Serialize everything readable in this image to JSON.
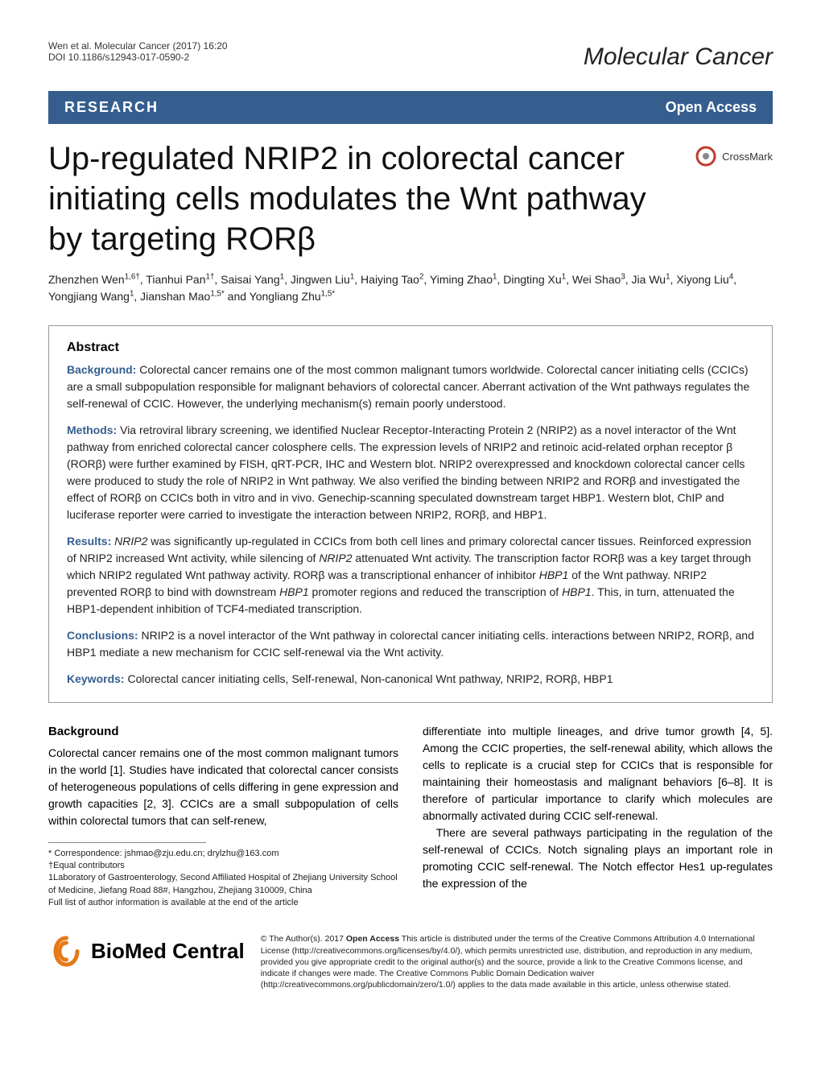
{
  "meta": {
    "running_head": "Wen et al. Molecular Cancer (2017) 16:20",
    "doi": "DOI 10.1186/s12943-017-0590-2",
    "journal": "Molecular Cancer"
  },
  "banner": {
    "category": "RESEARCH",
    "access": "Open Access"
  },
  "crossmark": {
    "label": "CrossMark",
    "ring_color": "#c23a2e",
    "dot_color": "#888"
  },
  "title": "Up-regulated NRIP2 in colorectal cancer initiating cells modulates the Wnt pathway by targeting RORβ",
  "authors_html": "Zhenzhen Wen<sup>1,6†</sup>, Tianhui Pan<sup>1†</sup>, Saisai Yang<sup>1</sup>, Jingwen Liu<sup>1</sup>, Haiying Tao<sup>2</sup>, Yiming Zhao<sup>1</sup>, Dingting Xu<sup>1</sup>, Wei Shao<sup>3</sup>, Jia Wu<sup>1</sup>, Xiyong Liu<sup>4</sup>, Yongjiang Wang<sup>1</sup>, Jianshan Mao<sup>1,5*</sup> and Yongliang Zhu<sup>1,5*</sup>",
  "abstract": {
    "heading": "Abstract",
    "background": {
      "label": "Background:",
      "text": " Colorectal cancer remains one of the most common malignant tumors worldwide. Colorectal cancer initiating cells (CCICs) are a small subpopulation responsible for malignant behaviors of colorectal cancer. Aberrant activation of the Wnt pathways regulates the self-renewal of CCIC. However, the underlying mechanism(s) remain poorly understood."
    },
    "methods": {
      "label": "Methods:",
      "text": " Via retroviral library screening, we identified Nuclear Receptor-Interacting Protein 2 (NRIP2) as a novel interactor of the Wnt pathway from enriched colorectal cancer colosphere cells. The expression levels of NRIP2 and retinoic acid-related orphan receptor β (RORβ) were further examined by FISH, qRT-PCR, IHC and Western blot. NRIP2 overexpressed and knockdown colorectal cancer cells were produced to study the role of NRIP2 in Wnt pathway. We also verified the binding between NRIP2 and RORβ and investigated the effect of RORβ on CCICs both in vitro and in vivo. Genechip-scanning speculated downstream target HBP1. Western blot, ChIP and luciferase reporter were carried to investigate the interaction between NRIP2, RORβ, and HBP1."
    },
    "results": {
      "label": "Results:",
      "text_html": " <em>NRIP2</em> was significantly up-regulated in CCICs from both cell lines and primary colorectal cancer tissues. Reinforced expression of NRIP2 increased Wnt activity, while silencing of <em>NRIP2</em> attenuated Wnt activity. The transcription factor RORβ was a key target through which NRIP2 regulated Wnt pathway activity. RORβ was a transcriptional enhancer of inhibitor <em>HBP1</em> of the Wnt pathway. NRIP2 prevented RORβ to bind with downstream <em>HBP1</em> promoter regions and reduced the transcription of <em>HBP1</em>. This, in turn, attenuated the HBP1-dependent inhibition of TCF4-mediated transcription."
    },
    "conclusions": {
      "label": "Conclusions:",
      "text": " NRIP2 is a novel interactor of the Wnt pathway in colorectal cancer initiating cells. interactions between NRIP2, RORβ, and HBP1 mediate a new mechanism for CCIC self-renewal via the Wnt activity."
    },
    "keywords": {
      "label": "Keywords:",
      "text": " Colorectal cancer initiating cells, Self-renewal, Non-canonical Wnt pathway, NRIP2, RORβ, HBP1"
    }
  },
  "body": {
    "heading": "Background",
    "left": "Colorectal cancer remains one of the most common malignant tumors in the world [1]. Studies have indicated that colorectal cancer consists of heterogeneous populations of cells differing in gene expression and growth capacities [2, 3]. CCICs are a small subpopulation of cells within colorectal tumors that can self-renew,",
    "right_p1": "differentiate into multiple lineages, and drive tumor growth [4, 5]. Among the CCIC properties, the self-renewal ability, which allows the cells to replicate is a crucial step for CCICs that is responsible for maintaining their homeostasis and malignant behaviors [6–8]. It is therefore of particular importance to clarify which molecules are abnormally activated during CCIC self-renewal.",
    "right_p2": "There are several pathways participating in the regulation of the self-renewal of CCICs. Notch signaling plays an important role in promoting CCIC self-renewal. The Notch effector Hes1 up-regulates the expression of the"
  },
  "footnotes": {
    "correspondence": "* Correspondence: jshmao@zju.edu.cn; drylzhu@163.com",
    "equal": "†Equal contributors",
    "affil": "1Laboratory of Gastroenterology, Second Affiliated Hospital of Zhejiang University School of Medicine, Jiefang Road 88#, Hangzhou, Zhejiang 310009, China",
    "full": "Full list of author information is available at the end of the article"
  },
  "footer": {
    "bmc": "BioMed Central",
    "license_html": "© The Author(s). 2017 <b>Open Access</b> This article is distributed under the terms of the Creative Commons Attribution 4.0 International License (http://creativecommons.org/licenses/by/4.0/), which permits unrestricted use, distribution, and reproduction in any medium, provided you give appropriate credit to the original author(s) and the source, provide a link to the Creative Commons license, and indicate if changes were made. The Creative Commons Public Domain Dedication waiver (http://creativecommons.org/publicdomain/zero/1.0/) applies to the data made available in this article, unless otherwise stated."
  },
  "colors": {
    "banner_bg": "#355e8f",
    "banner_text": "#ffffff",
    "abstract_label": "#355e8f",
    "bmc_orange": "#e67817"
  }
}
